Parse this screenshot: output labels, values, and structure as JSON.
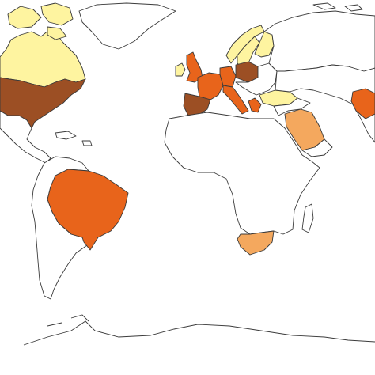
{
  "map": {
    "projection": "equirectangular",
    "colors": {
      "background": "#ffffff",
      "border": "#3a3a3a",
      "no_data": "#ffffff",
      "level_1": "#fef4a0",
      "level_2": "#f4a85e",
      "level_3": "#e8641b",
      "level_4": "#9c4f24"
    },
    "regions": [
      {
        "name": "canada",
        "fill_level": "level_1"
      },
      {
        "name": "united-states",
        "fill_level": "level_4"
      },
      {
        "name": "mexico",
        "fill_level": "no_data"
      },
      {
        "name": "greenland",
        "fill_level": "no_data"
      },
      {
        "name": "brazil",
        "fill_level": "level_3"
      },
      {
        "name": "south-america-other",
        "fill_level": "no_data"
      },
      {
        "name": "united-kingdom",
        "fill_level": "level_3"
      },
      {
        "name": "ireland",
        "fill_level": "level_1"
      },
      {
        "name": "norway",
        "fill_level": "level_1"
      },
      {
        "name": "sweden",
        "fill_level": "level_1"
      },
      {
        "name": "finland",
        "fill_level": "level_1"
      },
      {
        "name": "france",
        "fill_level": "level_3"
      },
      {
        "name": "spain",
        "fill_level": "level_4"
      },
      {
        "name": "italy",
        "fill_level": "level_3"
      },
      {
        "name": "germany",
        "fill_level": "level_3"
      },
      {
        "name": "poland",
        "fill_level": "level_4"
      },
      {
        "name": "greece",
        "fill_level": "level_3"
      },
      {
        "name": "turkey",
        "fill_level": "level_1"
      },
      {
        "name": "russia",
        "fill_level": "no_data"
      },
      {
        "name": "saudi-arabia",
        "fill_level": "level_2"
      },
      {
        "name": "iran",
        "fill_level": "level_3"
      },
      {
        "name": "africa-other",
        "fill_level": "no_data"
      },
      {
        "name": "south-africa",
        "fill_level": "level_2"
      },
      {
        "name": "antarctica",
        "fill_level": "no_data"
      }
    ]
  }
}
